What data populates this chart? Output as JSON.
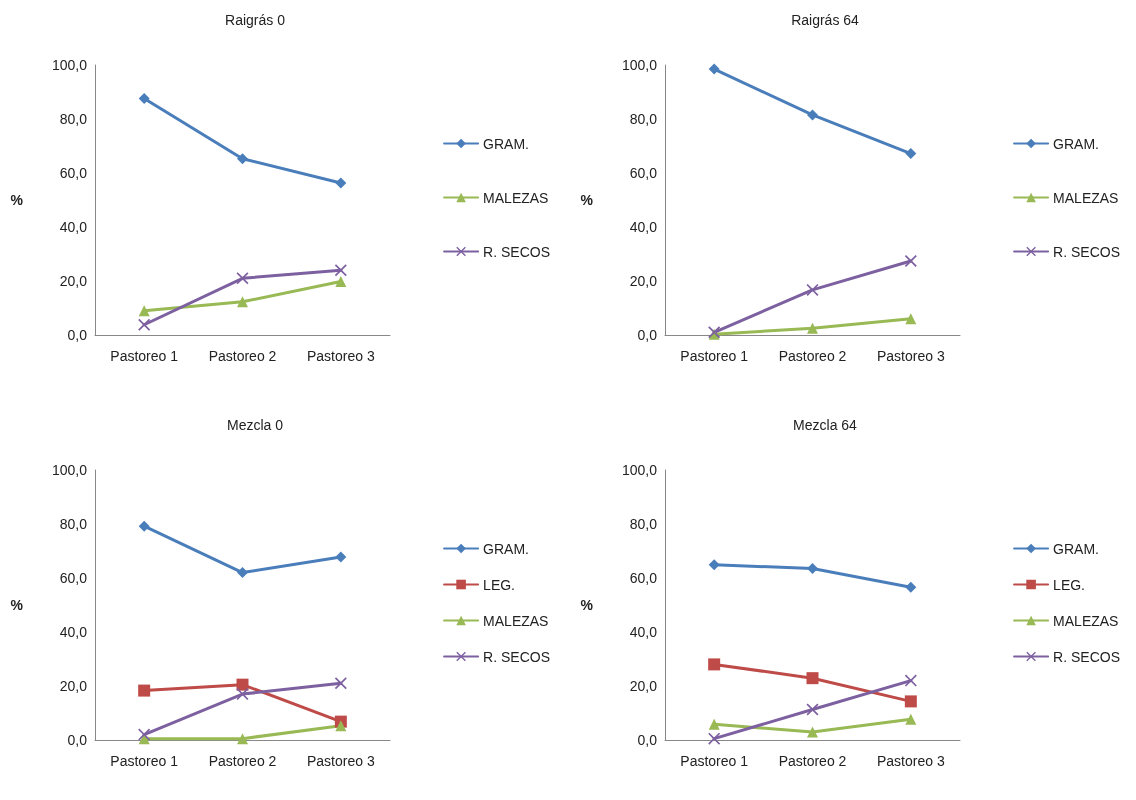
{
  "chart_data": [
    {
      "type": "line",
      "title": "Raigrás 0",
      "ylabel": "%",
      "categories": [
        "Pastoreo 1",
        "Pastoreo 2",
        "Pastoreo 3"
      ],
      "ylim": [
        0,
        100
      ],
      "yticks": [
        {
          "value": 0,
          "label": "0,0"
        },
        {
          "value": 20,
          "label": "20,0"
        },
        {
          "value": 40,
          "label": "40,0"
        },
        {
          "value": 60,
          "label": "60,0"
        },
        {
          "value": 80,
          "label": "80,0"
        },
        {
          "value": 100,
          "label": "100,0"
        }
      ],
      "grid": false,
      "legend": "right",
      "line_style": "solid",
      "series": [
        {
          "name": "GRAM.",
          "color": "#4a7ebb",
          "marker": "diamond",
          "values": [
            87.6,
            65.3,
            56.3
          ]
        },
        {
          "name": "MALEZAS",
          "color": "#98b954",
          "marker": "triangle",
          "values": [
            9.0,
            12.3,
            19.8
          ]
        },
        {
          "name": "R. SECOS",
          "color": "#7d60a0",
          "marker": "cross",
          "values": [
            3.8,
            21.0,
            24.0
          ]
        }
      ]
    },
    {
      "type": "line",
      "title": "Raigrás 64",
      "ylabel": "%",
      "categories": [
        "Pastoreo 1",
        "Pastoreo 2",
        "Pastoreo 3"
      ],
      "ylim": [
        0,
        100
      ],
      "yticks": [
        {
          "value": 0,
          "label": "0,0"
        },
        {
          "value": 20,
          "label": "20,0"
        },
        {
          "value": 40,
          "label": "40,0"
        },
        {
          "value": 60,
          "label": "60,0"
        },
        {
          "value": 80,
          "label": "80,0"
        },
        {
          "value": 100,
          "label": "100,0"
        }
      ],
      "grid": false,
      "legend": "right",
      "line_style": "solid",
      "series": [
        {
          "name": "GRAM.",
          "color": "#4a7ebb",
          "marker": "diamond",
          "values": [
            98.5,
            81.5,
            67.2
          ]
        },
        {
          "name": "MALEZAS",
          "color": "#98b954",
          "marker": "triangle",
          "values": [
            0.3,
            2.5,
            6.0
          ]
        },
        {
          "name": "R. SECOS",
          "color": "#7d60a0",
          "marker": "cross",
          "values": [
            1.0,
            16.7,
            27.4
          ]
        }
      ]
    },
    {
      "type": "line",
      "title": "Mezcla 0",
      "ylabel": "%",
      "categories": [
        "Pastoreo 1",
        "Pastoreo 2",
        "Pastoreo 3"
      ],
      "ylim": [
        0,
        100
      ],
      "yticks": [
        {
          "value": 0,
          "label": "0,0"
        },
        {
          "value": 20,
          "label": "20,0"
        },
        {
          "value": 40,
          "label": "40,0"
        },
        {
          "value": 60,
          "label": "60,0"
        },
        {
          "value": 80,
          "label": "80,0"
        },
        {
          "value": 100,
          "label": "100,0"
        }
      ],
      "grid": false,
      "legend": "right",
      "line_style": "solid",
      "series": [
        {
          "name": "GRAM.",
          "color": "#4a7ebb",
          "marker": "diamond",
          "values": [
            79.2,
            62.0,
            67.8
          ]
        },
        {
          "name": "LEG.",
          "color": "#be4b48",
          "marker": "square",
          "values": [
            18.3,
            20.5,
            6.8
          ]
        },
        {
          "name": "MALEZAS",
          "color": "#98b954",
          "marker": "triangle",
          "values": [
            0.5,
            0.5,
            5.3
          ]
        },
        {
          "name": "R. SECOS",
          "color": "#7d60a0",
          "marker": "cross",
          "values": [
            2.0,
            17.0,
            21.0
          ]
        }
      ]
    },
    {
      "type": "line",
      "title": "Mezcla 64",
      "ylabel": "%",
      "categories": [
        "Pastoreo 1",
        "Pastoreo 2",
        "Pastoreo 3"
      ],
      "ylim": [
        0,
        100
      ],
      "yticks": [
        {
          "value": 0,
          "label": "0,0"
        },
        {
          "value": 20,
          "label": "20,0"
        },
        {
          "value": 40,
          "label": "40,0"
        },
        {
          "value": 60,
          "label": "60,0"
        },
        {
          "value": 80,
          "label": "80,0"
        },
        {
          "value": 100,
          "label": "100,0"
        }
      ],
      "grid": false,
      "legend": "right",
      "line_style": "solid",
      "series": [
        {
          "name": "GRAM.",
          "color": "#4a7ebb",
          "marker": "diamond",
          "values": [
            64.9,
            63.5,
            56.6
          ]
        },
        {
          "name": "LEG.",
          "color": "#be4b48",
          "marker": "square",
          "values": [
            28.0,
            22.9,
            14.3
          ]
        },
        {
          "name": "MALEZAS",
          "color": "#98b954",
          "marker": "triangle",
          "values": [
            5.8,
            3.0,
            7.7
          ]
        },
        {
          "name": "R. SECOS",
          "color": "#7d60a0",
          "marker": "cross",
          "values": [
            0.5,
            11.3,
            22.0
          ]
        }
      ]
    }
  ]
}
